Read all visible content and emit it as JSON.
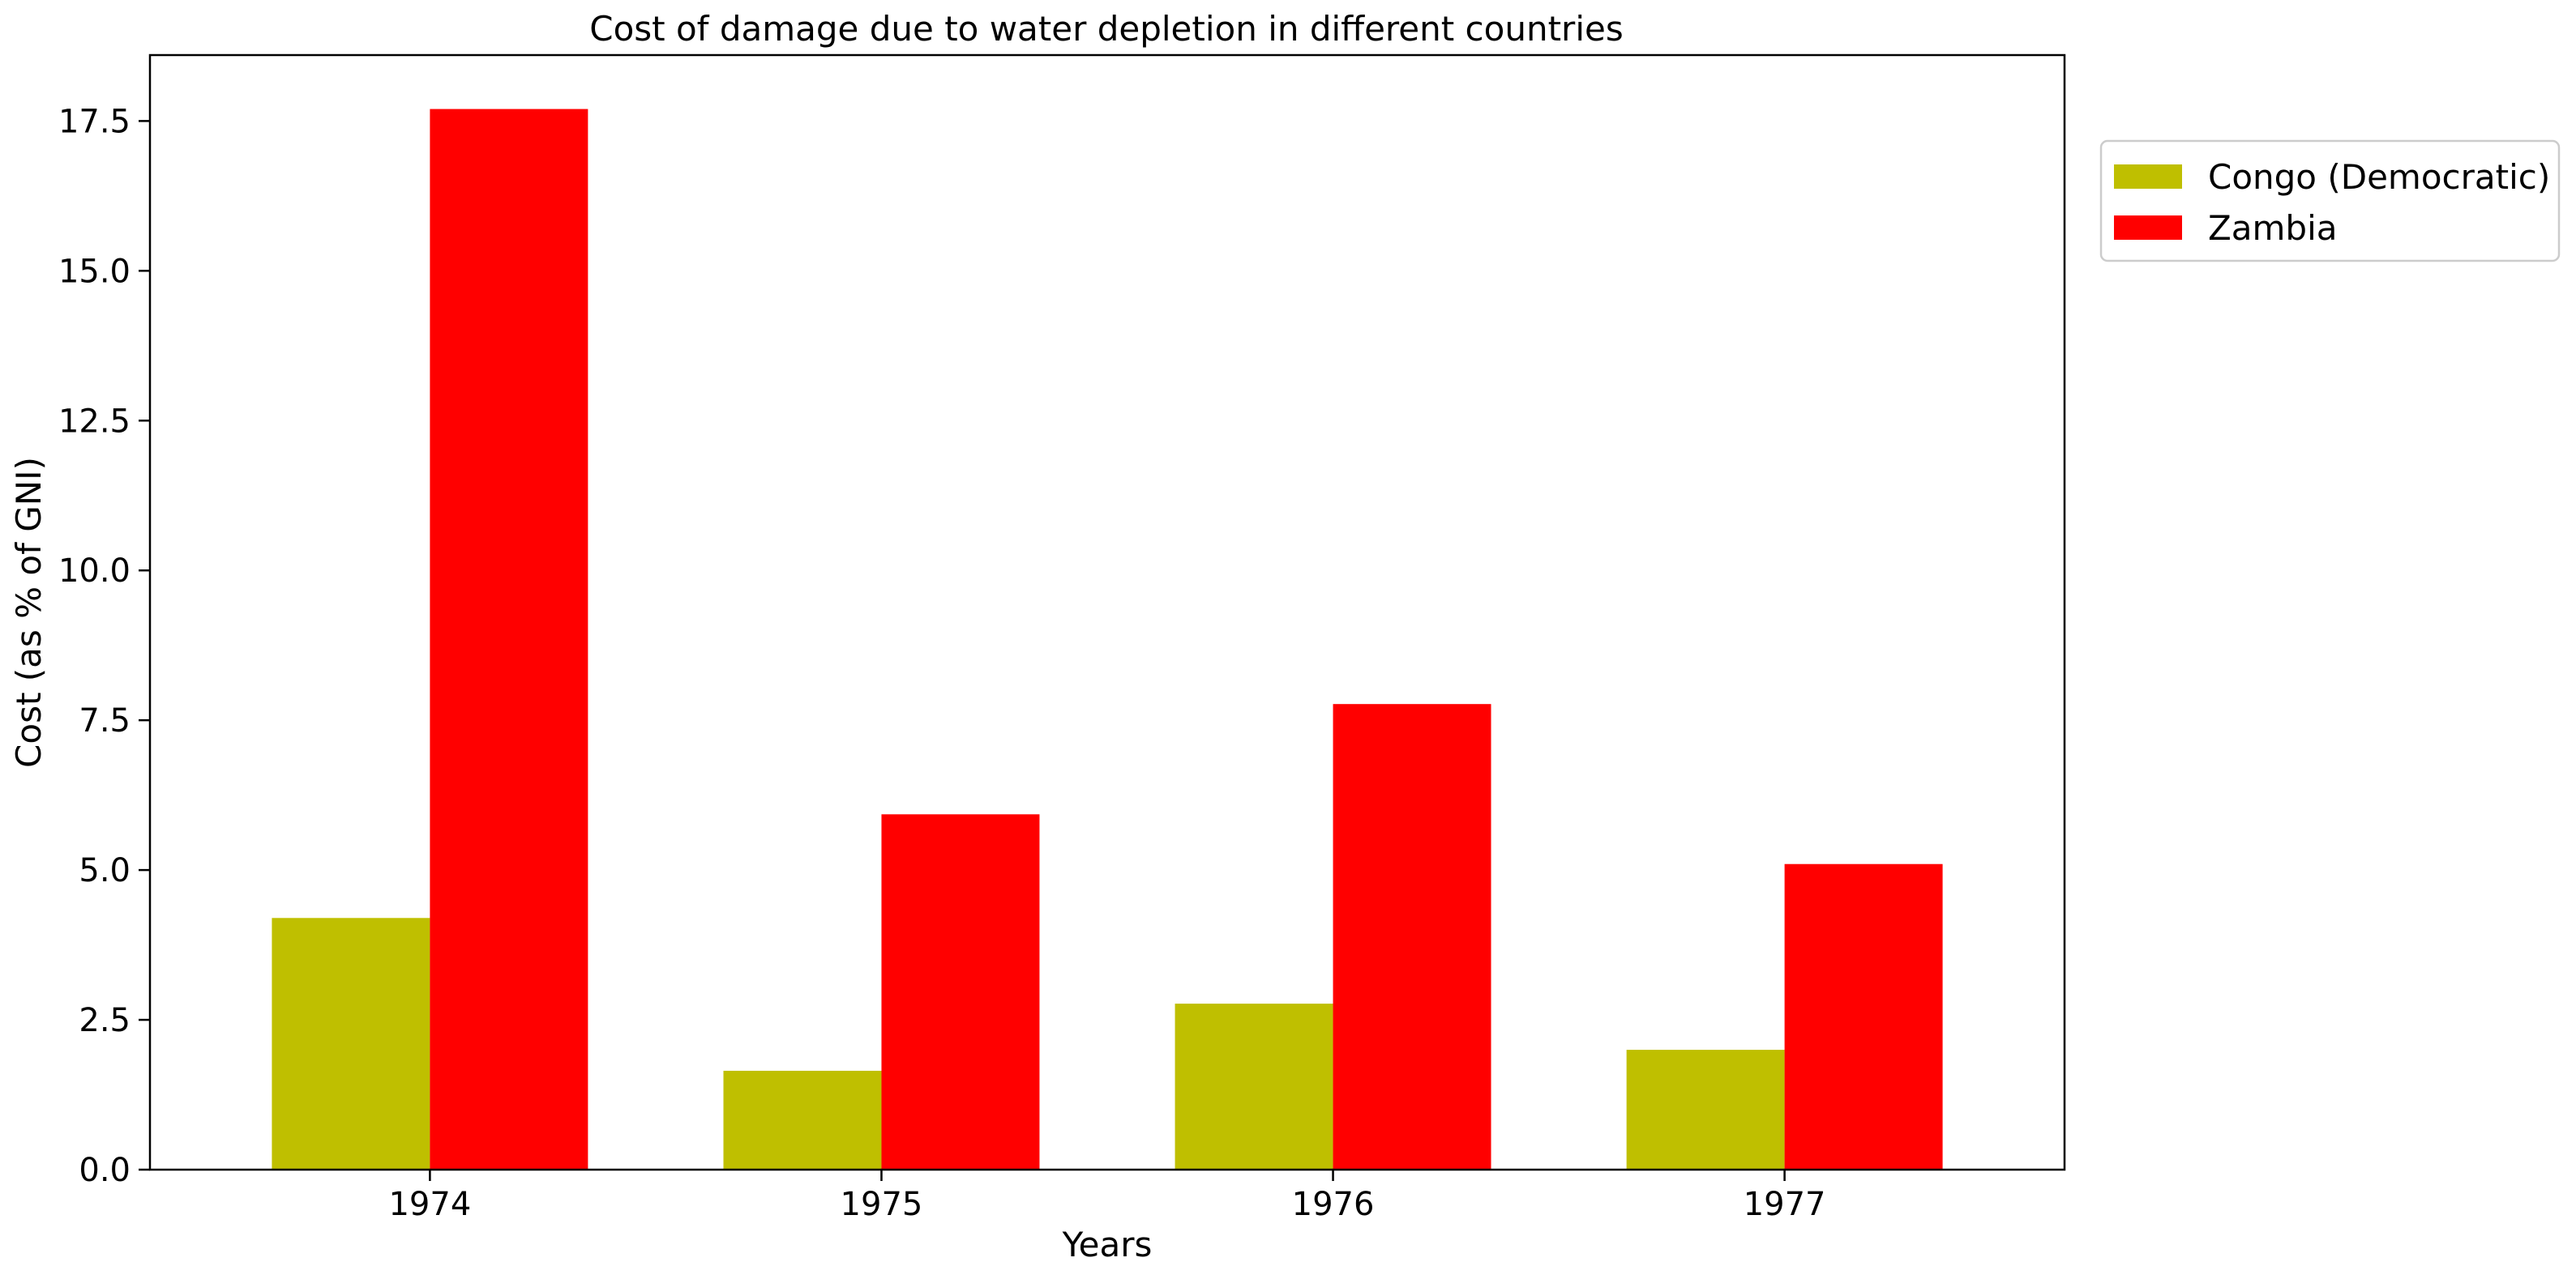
{
  "chart_data": {
    "type": "bar",
    "title": "Cost of damage due to water depletion in different countries",
    "xlabel": "Years",
    "ylabel": "Cost (as % of GNI)",
    "categories": [
      "1974",
      "1975",
      "1976",
      "1977"
    ],
    "series": [
      {
        "name": "Congo (Democratic)",
        "color": "#bfbf00",
        "values": [
          4.2,
          1.65,
          2.77,
          2.0
        ]
      },
      {
        "name": "Zambia",
        "color": "#ff0000",
        "values": [
          17.7,
          5.93,
          7.77,
          5.1
        ]
      }
    ],
    "ylim": [
      0,
      18.6
    ],
    "yticks": [
      "0.0",
      "2.5",
      "5.0",
      "7.5",
      "10.0",
      "12.5",
      "15.0",
      "17.5"
    ],
    "grid": false,
    "legend_position": "outside-top-right"
  }
}
